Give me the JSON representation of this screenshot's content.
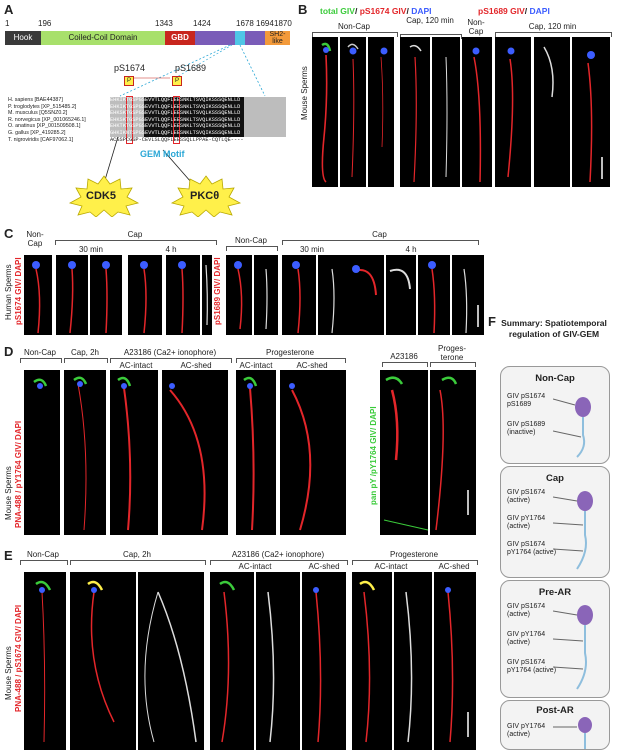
{
  "panel_labels": {
    "a": "A",
    "b": "B",
    "c": "C",
    "d": "D",
    "e": "E",
    "f": "F"
  },
  "panel_a": {
    "positions": [
      "1",
      "196",
      "1343",
      "1424",
      "1678",
      "1694",
      "1870"
    ],
    "domains": [
      "Hook",
      "Coiled-Coil Domain",
      "GBD",
      "SH2-like"
    ],
    "sites": [
      "pS1674",
      "pS1689"
    ],
    "species": [
      {
        "name": "H. sapiens",
        "acc": "[BAE44387]",
        "seq": "EHKIKTGSPGSEVVTLQQFLEESNKLTSVQIKSSSQENLLD"
      },
      {
        "name": "P. troglodytes",
        "acc": "[XP_515485.2]",
        "seq": "EHKIKTGSPGSEVVTLQQFLEESNKLTSVQIKSSSQENLLD"
      },
      {
        "name": "M. musculus",
        "acc": "[Q5SNZ0.2]",
        "seq": "EHKSKTGSPGSEVVTLQQFLEESNKLTSVQLKSSSQENLLD"
      },
      {
        "name": "R. norvegicus",
        "acc": "[XP_001065246.1]",
        "seq": "EHKSKTGSPGSEVVTLQQFLEESNKLTSVQLKSSSQENLLD"
      },
      {
        "name": "O. anatinus",
        "acc": "[XP_001509508.1]",
        "seq": "EHKTKTGSPGSEVVTLQQFLEESNKLTSVQIKSSSQENLLD"
      },
      {
        "name": "G. gallus",
        "acc": "[XP_419285.2]",
        "seq": "GHKIKNTSPGSEVVTLQQFLEESNKLTSVQIKSSSQENLLD"
      },
      {
        "name": "T. nigroviridis",
        "acc": "[CAF97062.1]",
        "seq": "ACSSPCGSP-CEVLSLQQFLEESSQLLPPAE-CQTLQE----"
      }
    ],
    "gem_motif": "GEM Motif",
    "kinases": [
      "CDK5",
      "PKCθ"
    ]
  },
  "panel_b": {
    "title_total": "total GIV",
    "title_ps1674": "pS1674 GIV",
    "title_ps1689": "pS1689 GIV",
    "title_dapi": "DAPI",
    "sep": "/ ",
    "side_label": "Mouse Sperms",
    "headers": [
      "Non-Cap",
      "Cap, 120 min",
      "Non-Cap",
      "Cap, 120 min"
    ]
  },
  "panel_c": {
    "side_label": "Human Sperms",
    "left_stain": "pS1674 GIV/ DAPI",
    "right_stain": "pS1689 GIV/ DAPI",
    "headers": {
      "noncap": "Non-Cap",
      "cap": "Cap",
      "t30": "30 min",
      "t4h": "4 h"
    }
  },
  "panel_d": {
    "side_label": "Mouse Sperms",
    "stain": "PNA-488 / pY1764 GIV/ DAPI",
    "stain2": "pan pY /pY1764 GIV/ DAPI",
    "headers": {
      "noncap": "Non-Cap",
      "cap2h": "Cap, 2h",
      "a23187": "A23186 (Ca2+ ionophore)",
      "prog": "Progesterone",
      "acintact": "AC-intact",
      "acshed": "AC-shed",
      "a23187s": "A23186",
      "progs": "Proges-terone"
    }
  },
  "panel_e": {
    "side_label": "Mouse Sperms",
    "stain": "PNA-488 / pS1674 GIV/ DAPI",
    "headers": {
      "noncap": "Non-Cap",
      "cap2h": "Cap, 2h",
      "a23187": "A23186 (Ca2+ ionophore)",
      "prog": "Progesterone",
      "acintact": "AC-intact",
      "acshed": "AC-shed"
    }
  },
  "panel_f": {
    "title": "Summary: Spatiotemporal regulation of GIV-GEM",
    "boxes": [
      {
        "title": "Non-Cap",
        "items": [
          "GIV pS1674 pS1689",
          "GIV pS1689 (inactive)"
        ]
      },
      {
        "title": "Cap",
        "items": [
          "GIV pS1674 (active)",
          "GIV pY1764 (active)",
          "GIV pS1674 pY1764 (active)"
        ]
      },
      {
        "title": "Pre-AR",
        "items": [
          "GIV pS1674 (active)",
          "GIV pY1764 (active)",
          "GIV pS1674 pY1764 (active)"
        ]
      },
      {
        "title": "Post-AR",
        "items": [
          "GIV pY1764 (active)"
        ]
      }
    ]
  },
  "colors": {
    "hook": "#3a3a3a",
    "coiled": "#a8e06b",
    "gbd": "#c8261e",
    "tail": "#7a5cb8",
    "cyan": "#4fc6e6",
    "sh2": "#f39a3a",
    "kinase": "#fff04a",
    "red": "#e3262a",
    "green": "#3bcb3b",
    "blue": "#3c5dff",
    "gem": "#2aa7d6"
  }
}
